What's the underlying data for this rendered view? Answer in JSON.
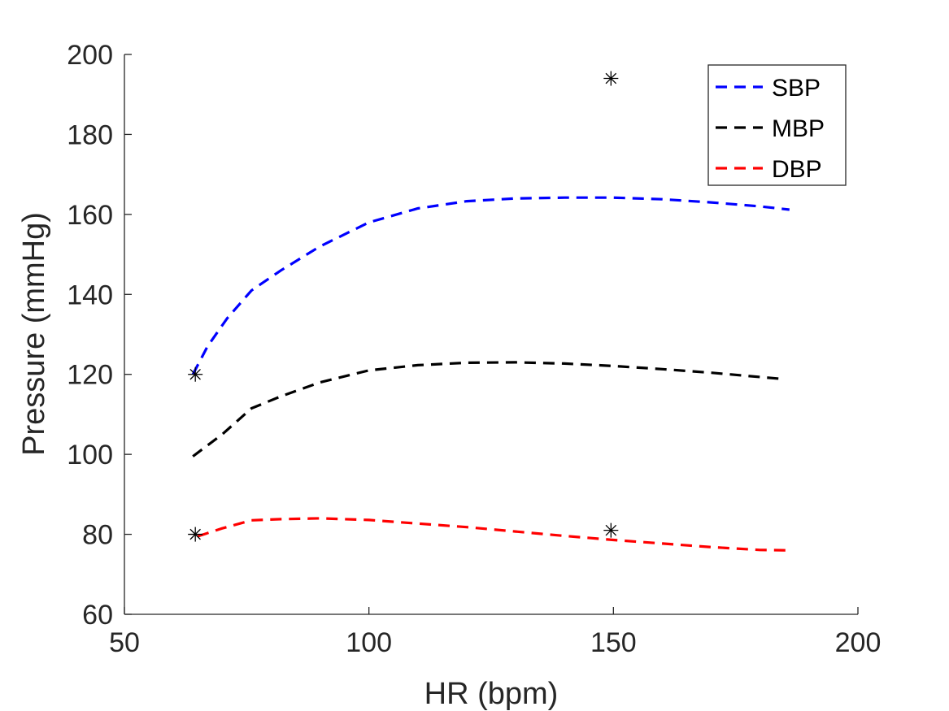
{
  "chart_data": {
    "type": "line",
    "xlabel": "HR (bpm)",
    "ylabel": "Pressure (mmHg)",
    "xlim": [
      50,
      200
    ],
    "ylim": [
      60,
      200
    ],
    "xticks": [
      50,
      100,
      150,
      200
    ],
    "yticks": [
      60,
      80,
      100,
      120,
      140,
      160,
      180,
      200
    ],
    "xtick_labels": [
      "50",
      "100",
      "150",
      "200"
    ],
    "ytick_labels": [
      "60",
      "80",
      "100",
      "120",
      "140",
      "160",
      "180",
      "200"
    ],
    "grid": false,
    "legend_position": "top-right",
    "series": [
      {
        "name": "SBP",
        "color": "#0000ff",
        "style": "dashed",
        "x": [
          64,
          67,
          71,
          76,
          82,
          90,
          100,
          110,
          120,
          130,
          140,
          150,
          160,
          170,
          180,
          186
        ],
        "y": [
          120,
          127,
          134,
          141,
          146,
          152,
          158,
          161.5,
          163.3,
          164,
          164.2,
          164.2,
          163.8,
          163,
          162,
          161.2
        ]
      },
      {
        "name": "MBP",
        "color": "#000000",
        "style": "dashed",
        "x": [
          64,
          70,
          76,
          82,
          90,
          100,
          110,
          120,
          130,
          140,
          150,
          160,
          170,
          184
        ],
        "y": [
          99.5,
          105,
          111.5,
          114.5,
          118,
          121,
          122.3,
          122.9,
          123,
          122.7,
          122.1,
          121.3,
          120.4,
          118.9
        ]
      },
      {
        "name": "DBP",
        "color": "#ff0000",
        "style": "dashed",
        "x": [
          65,
          70,
          76,
          82,
          90,
          100,
          110,
          120,
          130,
          140,
          150,
          160,
          170,
          180,
          186
        ],
        "y": [
          79.5,
          81.5,
          83.5,
          83.8,
          84,
          83.6,
          82.7,
          81.8,
          80.7,
          79.6,
          78.6,
          77.7,
          76.8,
          76.1,
          76
        ]
      }
    ],
    "markers": [
      {
        "x": 64.5,
        "y": 120
      },
      {
        "x": 64.5,
        "y": 80
      },
      {
        "x": 149.5,
        "y": 194
      },
      {
        "x": 149.5,
        "y": 81
      }
    ]
  }
}
